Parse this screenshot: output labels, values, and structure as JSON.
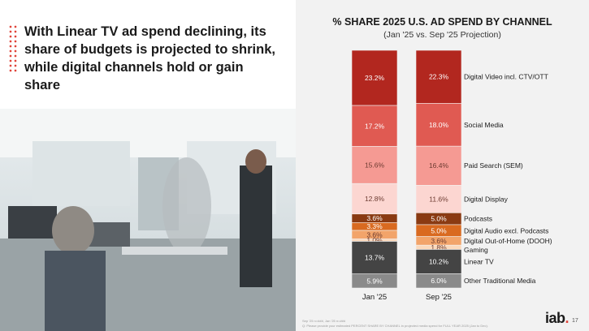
{
  "headline": "With Linear TV ad spend declining, its share of budgets is projected to shrink, while digital channels hold or gain share",
  "chart_data": {
    "type": "stacked-bar",
    "title": "% SHARE 2025 U.S. AD SPEND BY CHANNEL",
    "subtitle": "(Jan '25 vs. Sep '25 Projection)",
    "categories": [
      "Jan '25",
      "Sep '25"
    ],
    "series": [
      {
        "name": "Digital Video incl. CTV/OTT",
        "color": "#b2271f",
        "values": [
          23.2,
          22.3
        ],
        "labels": [
          "23.2%",
          "22.3%"
        ]
      },
      {
        "name": "Social Media",
        "color": "#e05a52",
        "values": [
          17.2,
          18.0
        ],
        "labels": [
          "17.2%",
          "18.0%"
        ]
      },
      {
        "name": "Paid Search (SEM)",
        "color": "#f59a93",
        "values": [
          15.6,
          16.4
        ],
        "labels": [
          "15.6%",
          "16.4%"
        ]
      },
      {
        "name": "Digital Display",
        "color": "#fcd6d1",
        "values": [
          12.8,
          11.6
        ],
        "labels": [
          "12.8%",
          "11.6%"
        ]
      },
      {
        "name": "Podcasts",
        "color": "#8a3a12",
        "values": [
          3.6,
          5.0
        ],
        "labels": [
          "3.6%",
          "5.0%"
        ]
      },
      {
        "name": "Digital Audio excl. Podcasts",
        "color": "#d96a20",
        "values": [
          3.3,
          5.0
        ],
        "labels": [
          "3.3%",
          "5.0%"
        ]
      },
      {
        "name": "Digital Out-of-Home (DOOH)",
        "color": "#f2a46a",
        "values": [
          3.6,
          3.6
        ],
        "labels": [
          "3.6%",
          "3.6%"
        ]
      },
      {
        "name": "Gaming",
        "color": "#fbd9bc",
        "values": [
          1.0,
          1.8
        ],
        "labels": [
          "1.0%",
          "1.8%"
        ]
      },
      {
        "name": "Linear TV",
        "color": "#444444",
        "values": [
          13.7,
          10.2
        ],
        "labels": [
          "13.7%",
          "10.2%"
        ]
      },
      {
        "name": "Other Traditional Media",
        "color": "#8a8a8a",
        "values": [
          5.9,
          6.0
        ],
        "labels": [
          "5.9%",
          "6.0%"
        ]
      }
    ],
    "ylim": [
      0,
      100
    ]
  },
  "footnotes": [
    "Sep '25 n=###, Jan '25 n=###",
    "Q: Please provide your estimated PERCENT SHARE BY CHANNEL in projected media spend for FULL YEAR 2025 (Jan to Dec)."
  ],
  "logo": {
    "text": "iab",
    "dot": "."
  },
  "page_number": "17"
}
